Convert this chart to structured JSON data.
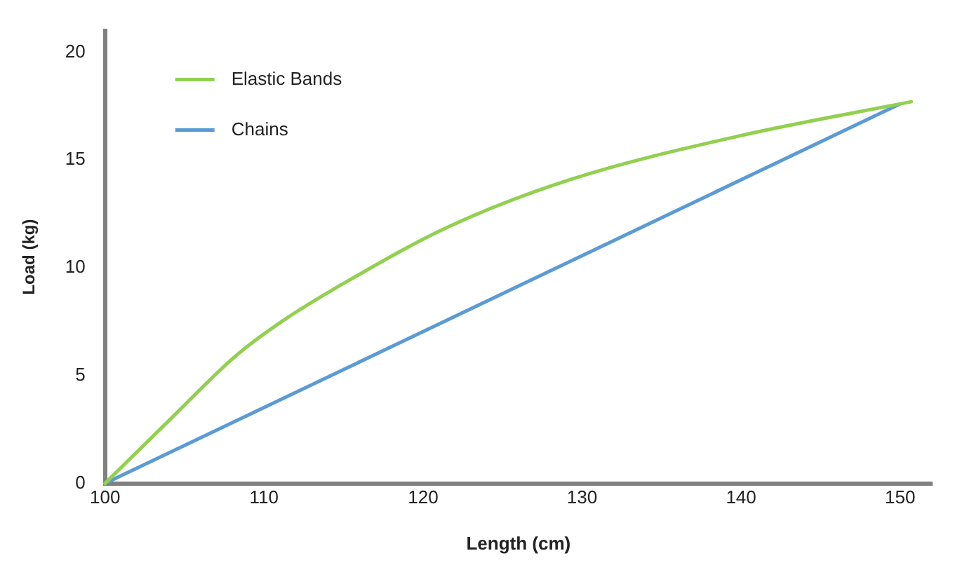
{
  "chart_data": {
    "type": "line",
    "xlabel": "Length (cm)",
    "ylabel": "Load (kg)",
    "xlim": [
      100,
      152
    ],
    "ylim": [
      0,
      21
    ],
    "xticks": [
      100,
      110,
      120,
      130,
      140,
      150
    ],
    "yticks": [
      0,
      5,
      10,
      15,
      20
    ],
    "grid": false,
    "legend": "top left",
    "marker": "none",
    "line_style": "solid",
    "series": [
      {
        "name": "Elastic Bands",
        "color": "#92d050",
        "x": [
          100,
          104,
          108.2,
          111.1,
          115.3,
          121.6,
          129.3,
          139.8,
          150.7
        ],
        "values": [
          0,
          2.9,
          5.9,
          7.5,
          9.4,
          11.9,
          14.1,
          16.1,
          17.7
        ]
      },
      {
        "name": "Chains",
        "color": "#5b9bd5",
        "x": [
          100,
          150
        ],
        "values": [
          0,
          17.6
        ]
      }
    ]
  }
}
